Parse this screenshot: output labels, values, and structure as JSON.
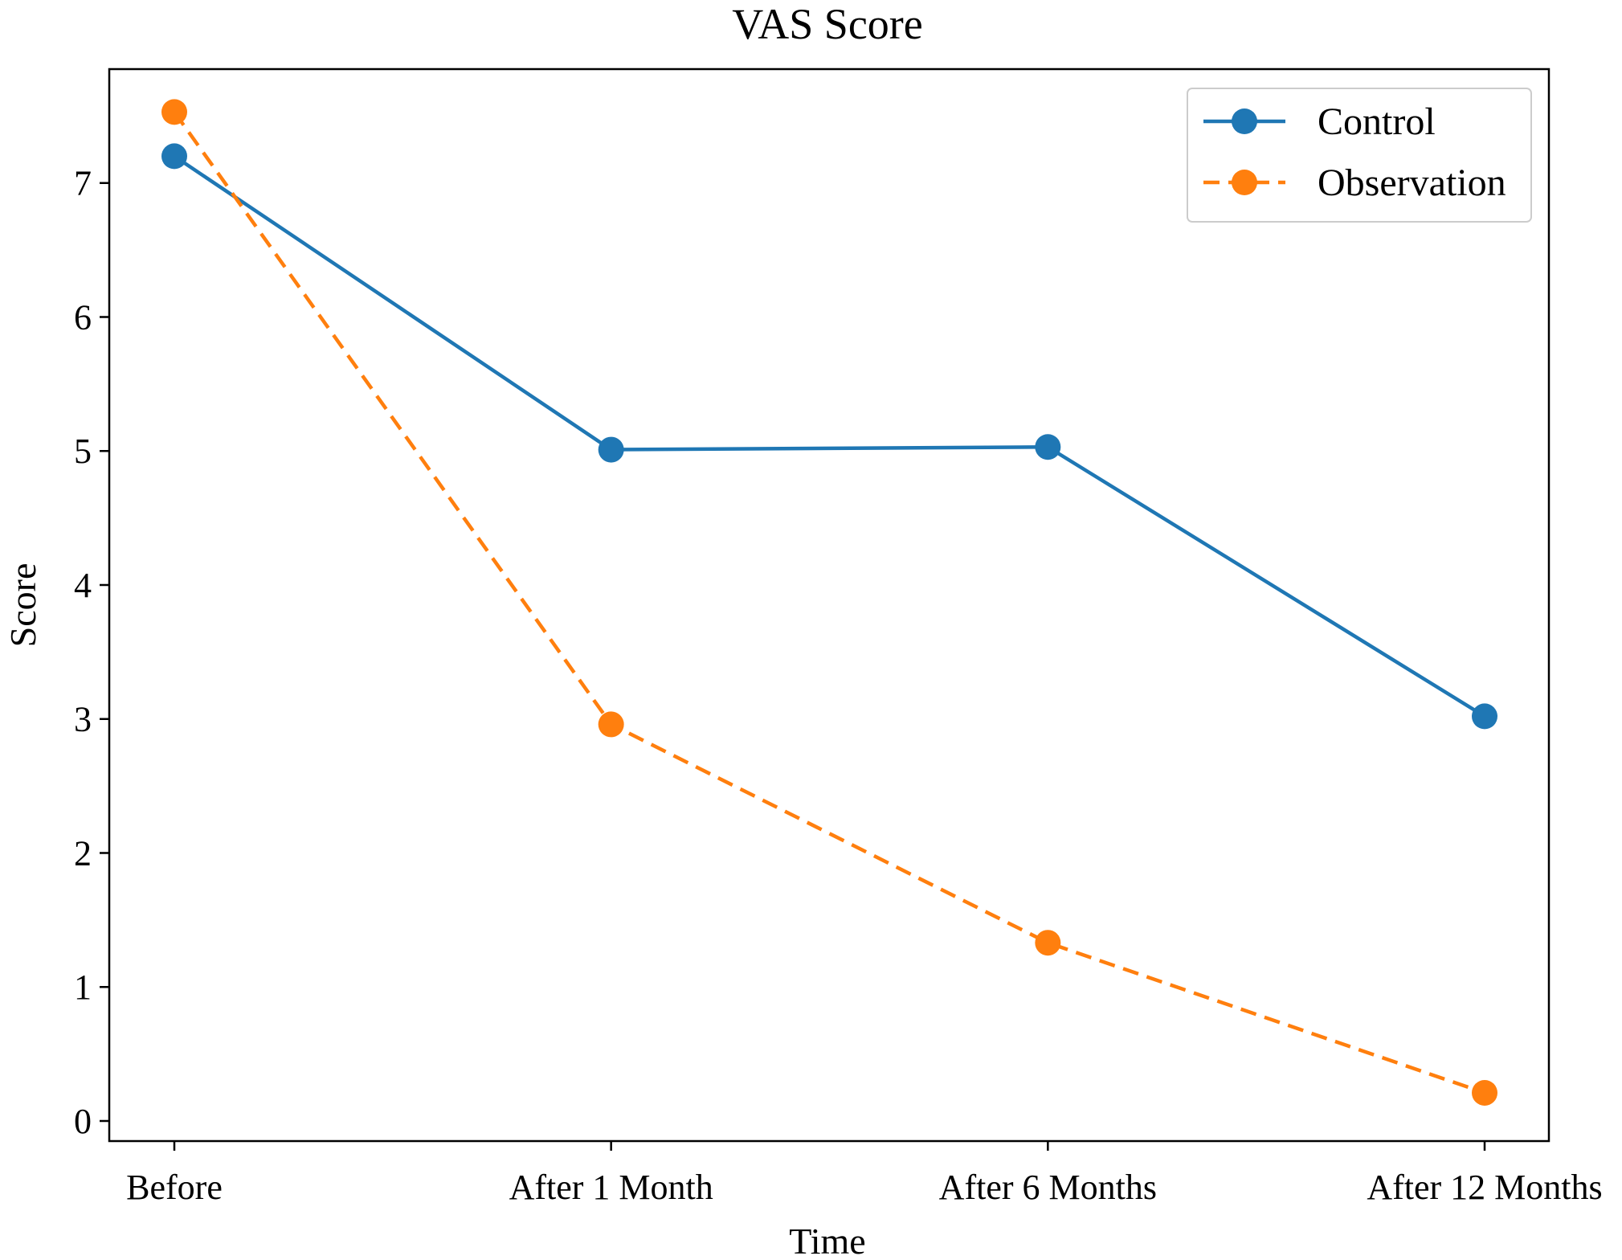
{
  "chart_data": {
    "type": "line",
    "title": "VAS Score",
    "xlabel": "Time",
    "ylabel": "Score",
    "categories": [
      "Before",
      "After 1 Month",
      "After 6 Months",
      "After 12 Months"
    ],
    "yticks": [
      "0",
      "1",
      "2",
      "3",
      "4",
      "5",
      "6",
      "7"
    ],
    "ylim": [
      -0.15,
      7.85
    ],
    "grid": false,
    "legend_position": "top-right",
    "series": [
      {
        "name": "Control",
        "values": [
          7.2,
          5.01,
          5.03,
          3.02
        ],
        "color": "#1f77b4",
        "linestyle": "solid",
        "marker": "circle"
      },
      {
        "name": "Observation",
        "values": [
          7.53,
          2.96,
          1.33,
          0.21
        ],
        "color": "#ff7f0e",
        "linestyle": "dashed",
        "marker": "circle"
      }
    ]
  }
}
